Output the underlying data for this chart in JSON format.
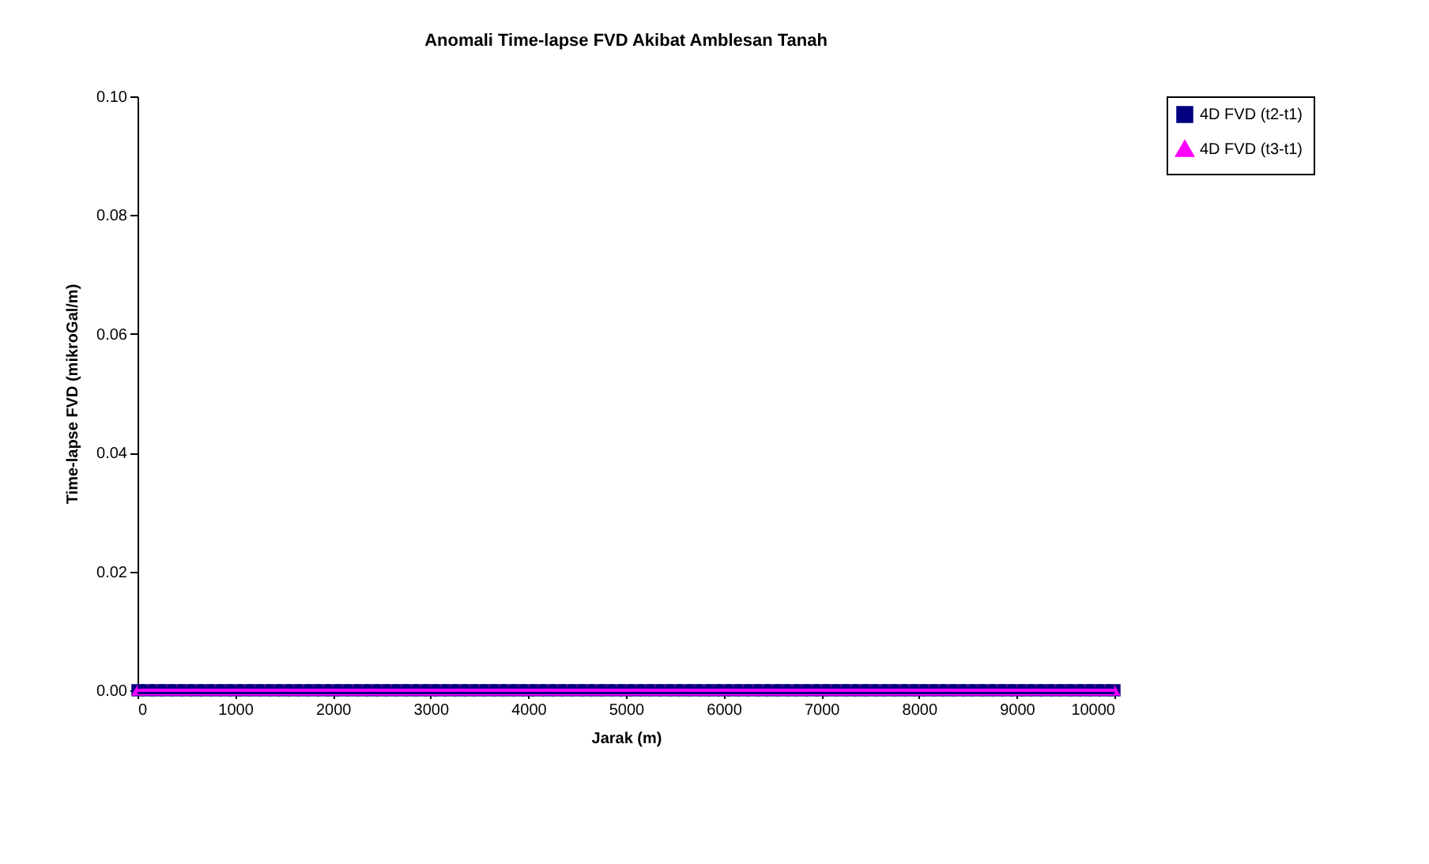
{
  "chart_data": {
    "type": "line",
    "title": "Anomali Time-lapse FVD Akibat Amblesan Tanah",
    "xlabel": "Jarak (m)",
    "ylabel": "Time-lapse FVD (mikroGal/m)",
    "x": [
      0,
      100,
      200,
      300,
      400,
      500,
      600,
      700,
      800,
      900,
      1000,
      1100,
      1200,
      1300,
      1400,
      1500,
      1600,
      1700,
      1800,
      1900,
      2000,
      2100,
      2200,
      2300,
      2400,
      2500,
      2600,
      2700,
      2800,
      2900,
      3000,
      3100,
      3200,
      3300,
      3400,
      3500,
      3600,
      3700,
      3800,
      3900,
      4000,
      4100,
      4200,
      4300,
      4400,
      4500,
      4600,
      4700,
      4800,
      4900,
      5000,
      5100,
      5200,
      5300,
      5400,
      5500,
      5600,
      5700,
      5800,
      5900,
      6000,
      6100,
      6200,
      6300,
      6400,
      6500,
      6600,
      6700,
      6800,
      6900,
      7000,
      7100,
      7200,
      7300,
      7400,
      7500,
      7600,
      7700,
      7800,
      7900,
      8000,
      8100,
      8200,
      8300,
      8400,
      8500,
      8600,
      8700,
      8800,
      8900,
      9000,
      9100,
      9200,
      9300,
      9400,
      9500,
      9600,
      9700,
      9800,
      9900,
      10000
    ],
    "series": [
      {
        "name": "4D FVD (t2-t1)",
        "color": "#000080",
        "marker": "square",
        "values": [
          0,
          0,
          0,
          0,
          0,
          0,
          0,
          0,
          0,
          0,
          0,
          0,
          0,
          0,
          0,
          0,
          0,
          0,
          0,
          0,
          0,
          0,
          0,
          0,
          0,
          0,
          0,
          0,
          0,
          0,
          0,
          0,
          0,
          0,
          0,
          0,
          0,
          0,
          0,
          0,
          0,
          0,
          0,
          0,
          0,
          0,
          0,
          0,
          0,
          0,
          0,
          0,
          0,
          0,
          0,
          0,
          0,
          0,
          0,
          0,
          0,
          0,
          0,
          0,
          0,
          0,
          0,
          0,
          0,
          0,
          0,
          0,
          0,
          0,
          0,
          0,
          0,
          0,
          0,
          0,
          0,
          0,
          0,
          0,
          0,
          0,
          0,
          0,
          0,
          0,
          0,
          0,
          0,
          0,
          0,
          0,
          0,
          0,
          0,
          0,
          0
        ]
      },
      {
        "name": "4D FVD (t3-t1)",
        "color": "#ff00ff",
        "marker": "triangle",
        "values": [
          0,
          0,
          0,
          0,
          0,
          0,
          0,
          0,
          0,
          0,
          0,
          0,
          0,
          0,
          0,
          0,
          0,
          0,
          0,
          0,
          0,
          0,
          0,
          0,
          0,
          0,
          0,
          0,
          0,
          0,
          0,
          0,
          0,
          0,
          0,
          0,
          0,
          0,
          0,
          0,
          0,
          0,
          0,
          0,
          0,
          0,
          0,
          0,
          0,
          0,
          0,
          0,
          0,
          0,
          0,
          0,
          0,
          0,
          0,
          0,
          0,
          0,
          0,
          0,
          0,
          0,
          0,
          0,
          0,
          0,
          0,
          0,
          0,
          0,
          0,
          0,
          0,
          0,
          0,
          0,
          0,
          0,
          0,
          0,
          0,
          0,
          0,
          0,
          0,
          0,
          0,
          0,
          0,
          0,
          0,
          0,
          0,
          0,
          0,
          0,
          0
        ]
      }
    ],
    "xlim": [
      0,
      10000
    ],
    "xticks": [
      0,
      1000,
      2000,
      3000,
      4000,
      5000,
      6000,
      7000,
      8000,
      9000,
      10000
    ],
    "ylim": [
      0,
      0.1
    ],
    "yticks": [
      {
        "value": 0,
        "label": "0.00"
      },
      {
        "value": 0.02,
        "label": "0.02"
      },
      {
        "value": 0.04,
        "label": "0.04"
      },
      {
        "value": 0.06,
        "label": "0.06"
      },
      {
        "value": 0.08,
        "label": "0.08"
      },
      {
        "value": 0.1,
        "label": "0.10"
      }
    ],
    "grid": false,
    "legend": "right"
  }
}
